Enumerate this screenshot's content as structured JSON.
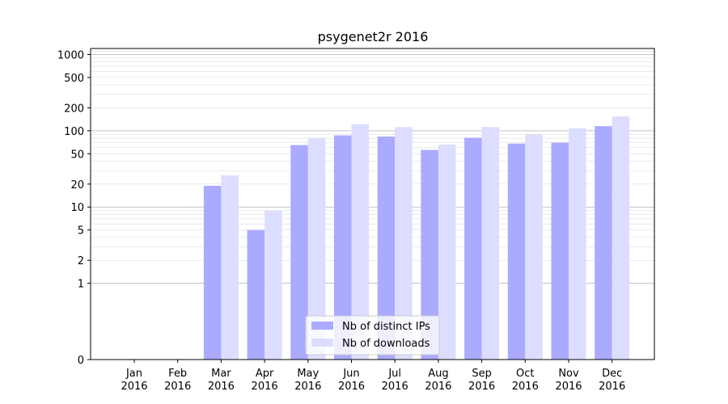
{
  "chart_data": {
    "type": "bar",
    "title": "psygenet2r 2016",
    "xlabel": "",
    "ylabel": "",
    "y_scale": "symlog",
    "ylim": [
      0,
      1200
    ],
    "y_ticks": [
      0,
      1,
      2,
      5,
      10,
      20,
      50,
      100,
      200,
      500,
      1000
    ],
    "y_tick_labels": [
      "0",
      "1",
      "2",
      "5",
      "10",
      "20",
      "50",
      "100",
      "200",
      "500",
      "1000"
    ],
    "grid": true,
    "legend_position": "bottom-center",
    "categories": [
      [
        "Jan",
        "2016"
      ],
      [
        "Feb",
        "2016"
      ],
      [
        "Mar",
        "2016"
      ],
      [
        "Apr",
        "2016"
      ],
      [
        "May",
        "2016"
      ],
      [
        "Jun",
        "2016"
      ],
      [
        "Jul",
        "2016"
      ],
      [
        "Aug",
        "2016"
      ],
      [
        "Sep",
        "2016"
      ],
      [
        "Oct",
        "2016"
      ],
      [
        "Nov",
        "2016"
      ],
      [
        "Dec",
        "2016"
      ]
    ],
    "series": [
      {
        "name": "Nb of distinct IPs",
        "color": "#aaaaff",
        "values": [
          0,
          0,
          19,
          5,
          65,
          87,
          84,
          56,
          81,
          68,
          70,
          115
        ]
      },
      {
        "name": "Nb of downloads",
        "color": "#ddddff",
        "values": [
          0,
          0,
          26,
          9,
          81,
          122,
          112,
          66,
          112,
          89,
          108,
          154
        ]
      }
    ]
  }
}
